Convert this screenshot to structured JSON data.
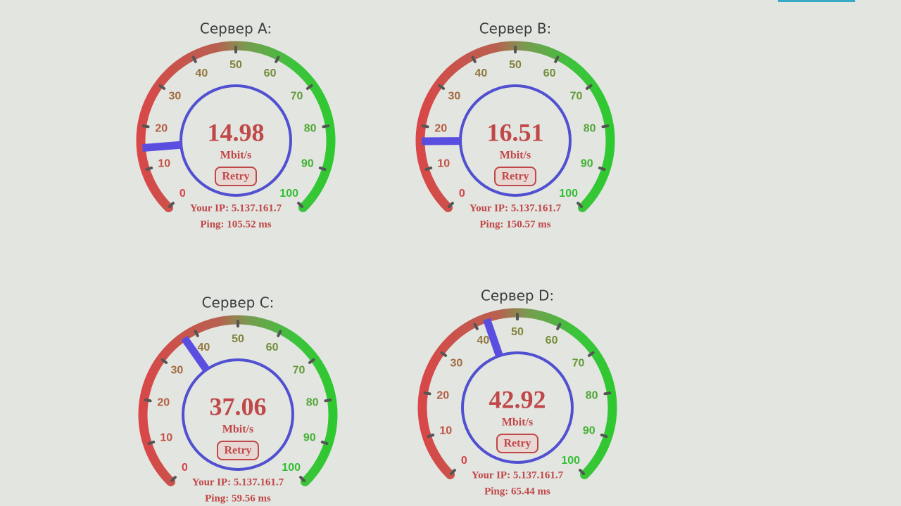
{
  "scale": {
    "min": 0,
    "max": 100,
    "ticks": [
      0,
      10,
      20,
      30,
      40,
      50,
      60,
      70,
      80,
      90,
      100
    ]
  },
  "servers": [
    {
      "title": "Сервер A:",
      "speed": 14.98,
      "unit": "Mbit/s",
      "retry": "Retry",
      "ip": "Your IP: 5.137.161.7",
      "ping": "Ping: 105.52 ms"
    },
    {
      "title": "Сервер B:",
      "speed": 16.51,
      "unit": "Mbit/s",
      "retry": "Retry",
      "ip": "Your IP: 5.137.161.7",
      "ping": "Ping: 150.57 ms"
    },
    {
      "title": "Сервер C:",
      "speed": 37.06,
      "unit": "Mbit/s",
      "retry": "Retry",
      "ip": "Your IP: 5.137.161.7",
      "ping": "Ping: 59.56 ms"
    },
    {
      "title": "Сервер D:",
      "speed": 42.92,
      "unit": "Mbit/s",
      "retry": "Retry",
      "ip": "Your IP: 5.137.161.7",
      "ping": "Ping: 65.44 ms"
    }
  ]
}
